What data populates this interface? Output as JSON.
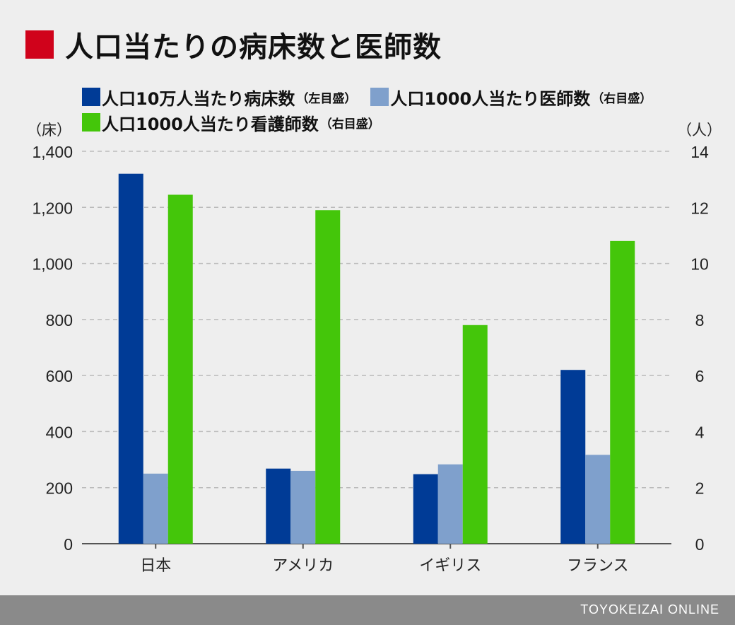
{
  "title": "人口当たりの病床数と医師数",
  "colors": {
    "title_marker": "#d0021b",
    "beds": "#003b96",
    "doctors": "#7fa0cc",
    "nurses": "#44c60a",
    "grid": "#bbbbbb",
    "axis": "#555555",
    "footer_bg": "#8a8a8a"
  },
  "footer": "TOYOKEIZAI ONLINE",
  "chart_data": {
    "type": "bar",
    "categories": [
      "日本",
      "アメリカ",
      "イギリス",
      "フランス"
    ],
    "y_left": {
      "unit_label": "（床）",
      "range": [
        0,
        1400
      ],
      "ticks": [
        "0",
        "200",
        "400",
        "600",
        "800",
        "1,000",
        "1,200",
        "1,400"
      ]
    },
    "y_right": {
      "unit_label": "（人）",
      "range": [
        0,
        14
      ],
      "ticks": [
        "0",
        "2",
        "4",
        "6",
        "8",
        "10",
        "12",
        "14"
      ]
    },
    "grid": true,
    "legend_position": "top",
    "series": [
      {
        "name": "人口10万人当たり病床数",
        "note": "（左目盛）",
        "axis": "left",
        "color": "#003b96",
        "values": [
          1320,
          268,
          248,
          620
        ]
      },
      {
        "name": "人口1000人当たり医師数",
        "note": "（右目盛）",
        "axis": "right",
        "color": "#7fa0cc",
        "values": [
          2.5,
          2.6,
          2.83,
          3.17
        ]
      },
      {
        "name": "人口1000人当たり看護師数",
        "note": "（右目盛）",
        "axis": "right",
        "color": "#44c60a",
        "values": [
          12.45,
          11.9,
          7.8,
          10.8
        ]
      }
    ]
  }
}
